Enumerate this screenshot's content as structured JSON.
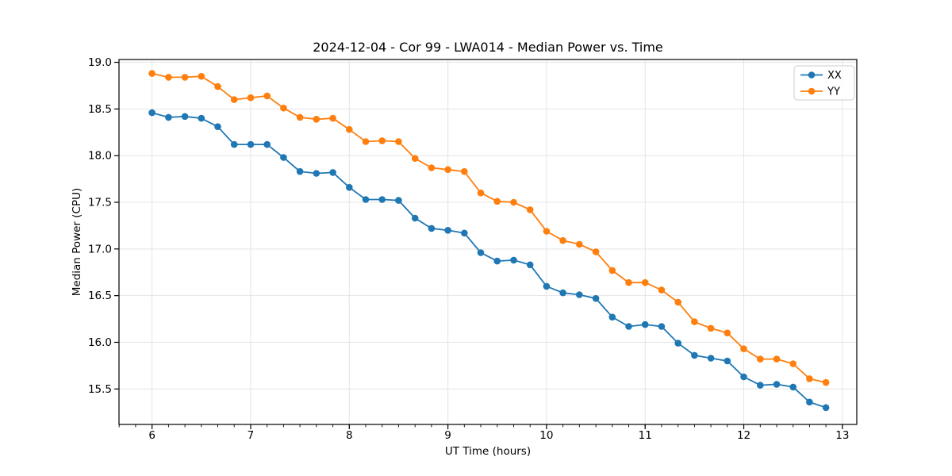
{
  "figure": {
    "title": "2024-12-04 - Cor 99 - LWA014 - Median Power vs. Time"
  },
  "chart_data": {
    "type": "line",
    "title": "2024-12-04 - Cor 99 - LWA014 - Median Power vs. Time",
    "xlabel": "UT Time (hours)",
    "ylabel": "Median Power (CPU)",
    "xlim": [
      5.665,
      13.146
    ],
    "ylim": [
      15.12,
      19.03
    ],
    "xticks": [
      6,
      7,
      8,
      9,
      10,
      11,
      12,
      13
    ],
    "yticks": [
      15.5,
      16.0,
      16.5,
      17.0,
      17.5,
      18.0,
      18.5,
      19.0
    ],
    "x_minor_step": 0.166667,
    "grid": true,
    "legend_position": "upper right",
    "x": [
      6.0,
      6.1667,
      6.3333,
      6.5,
      6.6667,
      6.8333,
      7.0,
      7.1667,
      7.3333,
      7.5,
      7.6667,
      7.8333,
      8.0,
      8.1667,
      8.3333,
      8.5,
      8.6667,
      8.8333,
      9.0,
      9.1667,
      9.3333,
      9.5,
      9.6667,
      9.8333,
      10.0,
      10.1667,
      10.3333,
      10.5,
      10.6667,
      10.8333,
      11.0,
      11.1667,
      11.3333,
      11.5,
      11.6667,
      11.8333,
      12.0,
      12.1667,
      12.3333,
      12.5,
      12.6667,
      12.8333
    ],
    "series": [
      {
        "name": "XX",
        "color": "#1f77b4",
        "values": [
          18.46,
          18.41,
          18.42,
          18.4,
          18.31,
          18.12,
          18.12,
          18.12,
          17.98,
          17.83,
          17.81,
          17.82,
          17.66,
          17.53,
          17.53,
          17.52,
          17.33,
          17.22,
          17.2,
          17.17,
          16.96,
          16.87,
          16.88,
          16.83,
          16.6,
          16.53,
          16.51,
          16.47,
          16.27,
          16.17,
          16.19,
          16.17,
          15.99,
          15.86,
          15.83,
          15.8,
          15.63,
          15.54,
          15.55,
          15.52,
          15.36,
          15.3
        ]
      },
      {
        "name": "YY",
        "color": "#ff7f0e",
        "values": [
          18.88,
          18.84,
          18.84,
          18.85,
          18.74,
          18.6,
          18.62,
          18.64,
          18.51,
          18.41,
          18.39,
          18.4,
          18.28,
          18.15,
          18.16,
          18.15,
          17.97,
          17.87,
          17.85,
          17.83,
          17.6,
          17.51,
          17.5,
          17.42,
          17.19,
          17.09,
          17.05,
          16.97,
          16.77,
          16.64,
          16.64,
          16.56,
          16.43,
          16.22,
          16.15,
          16.1,
          15.93,
          15.82,
          15.82,
          15.77,
          15.61,
          15.57
        ]
      }
    ],
    "style": {
      "grid_color": "#e4e4e4",
      "spine_color": "#000000",
      "text_color": "#000000",
      "legend_border": "#cccccc"
    }
  }
}
